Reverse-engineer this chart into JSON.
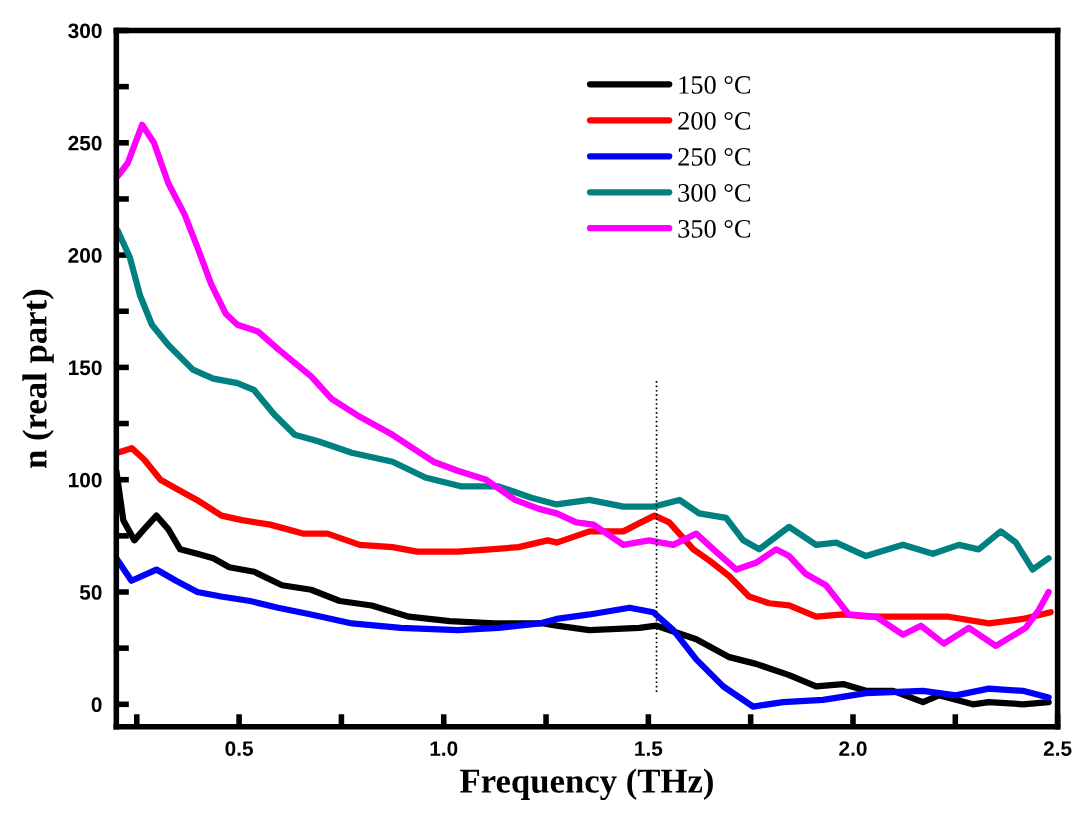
{
  "chart_data": {
    "type": "line",
    "xlabel": "Frequency (THz)",
    "ylabel": "n (real part)",
    "xlim": [
      0.2,
      2.5
    ],
    "ylim": [
      -10,
      300
    ],
    "xticks": [
      {
        "value": 0.25,
        "label": null
      },
      0.5,
      {
        "value": 0.75,
        "label": null
      },
      {
        "value": 1,
        "label": "1.0"
      },
      {
        "value": 1.25,
        "label": null
      },
      1.5,
      {
        "value": 1.75,
        "label": null
      },
      {
        "value": 2,
        "label": "2.0"
      },
      {
        "value": 2.25,
        "label": null
      },
      2.5
    ],
    "yticks": [
      0,
      {
        "value": 25,
        "label": null
      },
      50,
      {
        "value": 75,
        "label": null
      },
      100,
      {
        "value": 125,
        "label": null
      },
      150,
      {
        "value": 175,
        "label": null
      },
      200,
      {
        "value": 225,
        "label": null
      },
      250,
      {
        "value": 275,
        "label": null
      },
      300
    ],
    "grid": false,
    "legend": "top right",
    "marker": "none",
    "line_style": "solid",
    "ref_lines": [
      {
        "axis": "x",
        "value": 1.52,
        "color": "#000000",
        "line_style": "dotted"
      }
    ],
    "series": [
      {
        "name": "150 °C",
        "color": "#000000",
        "x": [
          0.2,
          0.217,
          0.244,
          0.268,
          0.298,
          0.327,
          0.356,
          0.398,
          0.437,
          0.476,
          0.537,
          0.605,
          0.676,
          0.746,
          0.824,
          0.915,
          1.015,
          1.124,
          1.244,
          1.276,
          1.356,
          1.478,
          1.52,
          1.617,
          1.698,
          1.763,
          1.844,
          1.91,
          1.976,
          2.032,
          2.098,
          2.171,
          2.21,
          2.293,
          2.332,
          2.415,
          2.478
        ],
        "values": [
          104,
          82,
          73,
          78,
          84,
          78,
          69,
          67,
          65,
          61,
          59,
          53,
          51,
          46,
          44,
          39,
          37,
          36,
          36,
          35,
          33,
          34,
          35,
          29,
          21,
          18,
          13,
          8,
          9,
          6,
          6,
          1,
          4,
          0,
          1,
          0,
          1
        ]
      },
      {
        "name": "200 °C",
        "color": "#ff0000",
        "x": [
          0.203,
          0.238,
          0.268,
          0.308,
          0.347,
          0.397,
          0.457,
          0.507,
          0.576,
          0.656,
          0.716,
          0.795,
          0.875,
          0.935,
          1.034,
          1.114,
          1.183,
          1.254,
          1.276,
          1.356,
          1.439,
          1.471,
          1.515,
          1.551,
          1.61,
          1.649,
          1.698,
          1.746,
          1.795,
          1.844,
          1.91,
          1.976,
          2.039,
          2.122,
          2.234,
          2.332,
          2.415,
          2.483
        ],
        "values": [
          112,
          114,
          109,
          100,
          96,
          91,
          84,
          82,
          80,
          76,
          76,
          71,
          70,
          68,
          68,
          69,
          70,
          73,
          72,
          77,
          77,
          80,
          84,
          81,
          69,
          64,
          57,
          48,
          45,
          44,
          39,
          40,
          39,
          39,
          39,
          36,
          38,
          41
        ]
      },
      {
        "name": "250 °C",
        "color": "#0000ff",
        "x": [
          0.2,
          0.237,
          0.298,
          0.346,
          0.398,
          0.456,
          0.527,
          0.595,
          0.676,
          0.776,
          0.895,
          1.034,
          1.134,
          1.234,
          1.276,
          1.356,
          1.454,
          1.512,
          1.561,
          1.617,
          1.683,
          1.756,
          1.829,
          1.927,
          2.032,
          2.171,
          2.251,
          2.332,
          2.415,
          2.478
        ],
        "values": [
          65,
          55,
          60,
          55,
          50,
          48,
          46,
          43,
          40,
          36,
          34,
          33,
          34,
          36,
          38,
          40,
          43,
          41,
          33,
          20,
          8,
          -1,
          1,
          2,
          5,
          6,
          4,
          7,
          6,
          3
        ]
      },
      {
        "name": "300 °C",
        "color": "#008080",
        "x": [
          0.203,
          0.233,
          0.258,
          0.287,
          0.327,
          0.387,
          0.437,
          0.496,
          0.536,
          0.586,
          0.636,
          0.695,
          0.775,
          0.875,
          0.955,
          1.044,
          1.134,
          1.214,
          1.276,
          1.356,
          1.439,
          1.512,
          1.576,
          1.624,
          1.69,
          1.732,
          1.771,
          1.844,
          1.91,
          1.959,
          2.032,
          2.122,
          2.195,
          2.259,
          2.307,
          2.361,
          2.398,
          2.439,
          2.478
        ],
        "values": [
          211,
          199,
          182,
          169,
          160,
          149,
          145,
          143,
          140,
          129,
          120,
          117,
          112,
          108,
          101,
          97,
          97,
          92,
          89,
          91,
          88,
          88,
          91,
          85,
          83,
          73,
          69,
          79,
          71,
          72,
          66,
          71,
          67,
          71,
          69,
          77,
          72,
          60,
          65
        ]
      },
      {
        "name": "350 °C",
        "color": "#ff00ff",
        "x": [
          0.203,
          0.228,
          0.263,
          0.292,
          0.327,
          0.367,
          0.397,
          0.432,
          0.467,
          0.496,
          0.546,
          0.596,
          0.676,
          0.726,
          0.795,
          0.875,
          0.975,
          1.034,
          1.104,
          1.174,
          1.233,
          1.276,
          1.324,
          1.366,
          1.439,
          1.502,
          1.561,
          1.617,
          1.659,
          1.715,
          1.763,
          1.812,
          1.844,
          1.885,
          1.934,
          1.99,
          2.056,
          2.122,
          2.166,
          2.222,
          2.283,
          2.349,
          2.422,
          2.454,
          2.478
        ],
        "values": [
          235,
          241,
          258,
          250,
          232,
          218,
          204,
          187,
          174,
          169,
          166,
          158,
          146,
          136,
          128,
          120,
          108,
          104,
          100,
          91,
          87,
          85,
          81,
          80,
          71,
          73,
          71,
          76,
          69,
          60,
          63,
          69,
          66,
          58,
          53,
          40,
          39,
          31,
          35,
          27,
          34,
          26,
          34,
          42,
          50
        ]
      }
    ]
  }
}
